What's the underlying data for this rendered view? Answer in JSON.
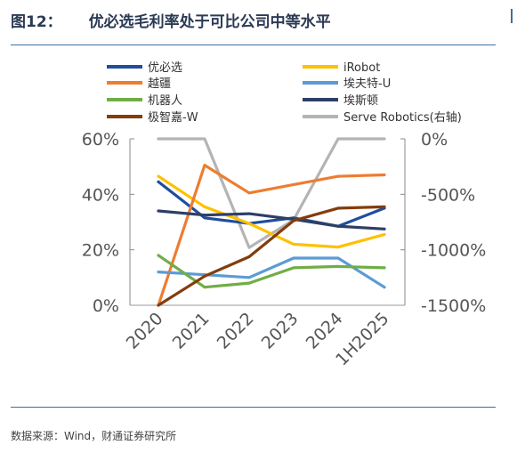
{
  "header": {
    "figure_label": "图12：",
    "title": "优必选毛利率处于可比公司中等水平"
  },
  "source": "数据来源：Wind，财通证券研究所",
  "chart_data": {
    "type": "line",
    "title": "优必选毛利率处于可比公司中等水平",
    "categories": [
      "2020",
      "2021",
      "2022",
      "2023",
      "2024",
      "1H2025"
    ],
    "y_left": {
      "lim": [
        0,
        60
      ],
      "ticks": [
        0,
        20,
        40,
        60
      ],
      "tick_labels": [
        "0%",
        "20%",
        "40%",
        "60%"
      ]
    },
    "y_right": {
      "lim": [
        -1500,
        0
      ],
      "ticks": [
        0,
        -500,
        -1000,
        -1500
      ],
      "tick_labels": [
        "0%",
        "-500%",
        "-1000%",
        "-1500%"
      ]
    },
    "grid": false,
    "legend_position": "top",
    "series": [
      {
        "name": "优必选",
        "axis": "left",
        "color": "#1f4e9c",
        "values": [
          44.5,
          31.5,
          29.5,
          31.5,
          28.5,
          35.0
        ]
      },
      {
        "name": "iRobot",
        "axis": "left",
        "color": "#ffc000",
        "values": [
          46.5,
          35.5,
          29.5,
          22.0,
          21.0,
          25.5
        ]
      },
      {
        "name": "越疆",
        "axis": "left",
        "color": "#ed7d31",
        "values": [
          0,
          50.5,
          40.5,
          43.5,
          46.5,
          47.0
        ]
      },
      {
        "name": "埃夫特-U",
        "axis": "left",
        "color": "#5b9bd5",
        "values": [
          12.0,
          11.0,
          10.0,
          17.0,
          17.0,
          6.5
        ]
      },
      {
        "name": "机器人",
        "axis": "left",
        "color": "#70ad47",
        "values": [
          18.0,
          6.5,
          8.0,
          13.5,
          14.0,
          13.5
        ]
      },
      {
        "name": "埃斯顿",
        "axis": "left",
        "color": "#2e3f66",
        "values": [
          34.0,
          32.5,
          33.0,
          31.0,
          28.5,
          27.5
        ]
      },
      {
        "name": "极智嘉-W",
        "axis": "left",
        "color": "#843c0c",
        "values": [
          0,
          10.5,
          17.5,
          30.5,
          35.0,
          35.5
        ]
      },
      {
        "name": "Serve Robotics(右轴)",
        "axis": "right",
        "color": "#b4b4b4",
        "values": [
          0,
          0,
          -980,
          -730,
          0,
          0
        ]
      }
    ]
  }
}
